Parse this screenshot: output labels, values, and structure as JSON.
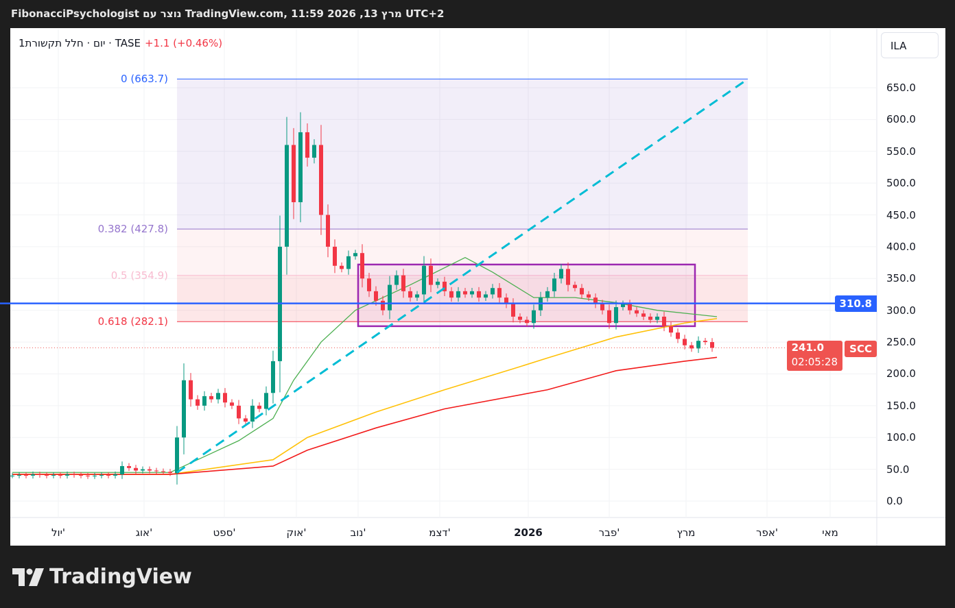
{
  "header": {
    "title": "FibonacciPsychologist נוצר עם TradingView.com, 11:59 2026 ,13 מרץ UTC+2"
  },
  "legend": {
    "symbol": "1יום · חלל תקשורת · TASE",
    "change": "+1.1 (+0.46%)"
  },
  "currency_button": "ILA",
  "branding": "TradingView",
  "colors": {
    "up": "#089981",
    "down": "#f23645",
    "ma_fast": "#4caf50",
    "ma_mid": "#ffc107",
    "ma_slow": "#f21a1a",
    "trend": "#00bcd4",
    "range_box": "#9c27b0",
    "hline": "#2962ff"
  },
  "chart_data": {
    "type": "candlestick",
    "symbol": "SCC",
    "last_price": "241.0",
    "countdown": "02:05:28",
    "ylim": [
      -20,
      690
    ],
    "xlim": [
      0,
      126
    ],
    "yticks": [
      "0.0",
      "50.0",
      "100.0",
      "150.0",
      "200.0",
      "250.0",
      "300.0",
      "350.0",
      "400.0",
      "450.0",
      "500.0",
      "550.0",
      "600.0",
      "650.0"
    ],
    "xticks": [
      {
        "label": "יול'",
        "at": 6.7
      },
      {
        "label": "אוג'",
        "at": 19.2
      },
      {
        "label": "ספט'",
        "at": 30.9
      },
      {
        "label": "אוק'",
        "at": 41.4
      },
      {
        "label": "נוב'",
        "at": 50.4
      },
      {
        "label": "דצמ'",
        "at": 62.3
      },
      {
        "label": "2026",
        "at": 75.2,
        "bold": true
      },
      {
        "label": "פבר'",
        "at": 87
      },
      {
        "label": "מרץ",
        "at": 98.2
      },
      {
        "label": "אפר'",
        "at": 110
      },
      {
        "label": "מאי",
        "at": 119.2
      }
    ],
    "closes": [
      40,
      41,
      40,
      42,
      41,
      40,
      41,
      40,
      42,
      41,
      40,
      39,
      40,
      41,
      40,
      42,
      55,
      52,
      48,
      50,
      48,
      47,
      46,
      44,
      100,
      190,
      160,
      150,
      165,
      160,
      170,
      155,
      150,
      130,
      125,
      150,
      145,
      170,
      220,
      400,
      560,
      470,
      580,
      540,
      560,
      450,
      400,
      370,
      365,
      385,
      390,
      350,
      330,
      315,
      300,
      340,
      355,
      330,
      320,
      325,
      370,
      340,
      345,
      330,
      320,
      330,
      325,
      330,
      320,
      325,
      335,
      320,
      310,
      290,
      285,
      280,
      300,
      320,
      330,
      350,
      365,
      340,
      335,
      325,
      320,
      310,
      300,
      280,
      305,
      310,
      300,
      295,
      290,
      285,
      290,
      275,
      265,
      255,
      245,
      240,
      252,
      250,
      241
    ],
    "moving_averages": [
      {
        "name": "fast",
        "points": [
          [
            0,
            45
          ],
          [
            23,
            45
          ],
          [
            28,
            70
          ],
          [
            33,
            95
          ],
          [
            38,
            130
          ],
          [
            41,
            190
          ],
          [
            45,
            250
          ],
          [
            50,
            300
          ],
          [
            58,
            340
          ],
          [
            66,
            383
          ],
          [
            70,
            360
          ],
          [
            76,
            320
          ],
          [
            82,
            320
          ],
          [
            88,
            312
          ],
          [
            94,
            300
          ],
          [
            102.7,
            290
          ]
        ]
      },
      {
        "name": "mid",
        "points": [
          [
            0,
            42
          ],
          [
            23,
            42
          ],
          [
            38,
            65
          ],
          [
            43,
            100
          ],
          [
            53,
            140
          ],
          [
            63,
            175
          ],
          [
            73,
            208
          ],
          [
            78,
            225
          ],
          [
            88,
            258
          ],
          [
            98,
            280
          ],
          [
            102.7,
            287
          ]
        ]
      },
      {
        "name": "slow",
        "points": [
          [
            0,
            42
          ],
          [
            23,
            42
          ],
          [
            38,
            55
          ],
          [
            43,
            80
          ],
          [
            53,
            115
          ],
          [
            63,
            145
          ],
          [
            78,
            175
          ],
          [
            88,
            205
          ],
          [
            98,
            220
          ],
          [
            102.7,
            226
          ]
        ]
      }
    ],
    "fibonacci": {
      "start": 24,
      "end": 107.2,
      "levels": [
        {
          "label": "0 (663.7)",
          "value": 663.7,
          "color": "#2962ff"
        },
        {
          "label": "0.382 (427.8)",
          "value": 427.8,
          "color": "#9575cd"
        },
        {
          "label": "0.5 (354.9)",
          "value": 354.9,
          "color": "#f8bbd0"
        },
        {
          "label": "0.618 (282.1)",
          "value": 282.1,
          "color": "#f23645"
        }
      ]
    },
    "trendline": {
      "from": [
        24,
        45
      ],
      "to": [
        107.2,
        663.7
      ]
    },
    "range_box": {
      "from": 50.4,
      "to": 99.5,
      "top": 372,
      "bottom": 275
    },
    "horizontal_line": {
      "value": 310.8,
      "label": "310.8"
    }
  }
}
